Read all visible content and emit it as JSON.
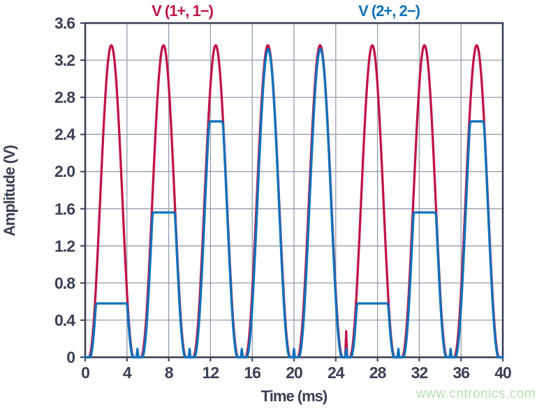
{
  "watermark": "www.cntronics.com",
  "colors": {
    "series1_red": "#c11346",
    "series2_blue": "#0f72bb",
    "axis_dark": "#3a4056",
    "grid": "#949cae",
    "watermark_green": "#b6e0ae",
    "background": "#ffffff"
  },
  "chart_data": {
    "type": "line",
    "title": "",
    "xlabel": "Time (ms)",
    "ylabel": "Amplitude (V)",
    "xlim": [
      0,
      40
    ],
    "ylim": [
      0,
      3.6
    ],
    "grid": true,
    "grid_x_step_ms": 4,
    "grid_y_step_v": 0.4,
    "xticks": [
      "0",
      "4",
      "8",
      "12",
      "16",
      "20",
      "24",
      "28",
      "32",
      "36",
      "40"
    ],
    "yticks": [
      "3.6",
      "3.2",
      "2.8",
      "2.4",
      "2.0",
      "1.6",
      "1.2",
      "0.8",
      "0.4",
      "0"
    ],
    "legend_position": "top",
    "series": [
      {
        "name": "V (1+, 1−)",
        "color": "#c11346",
        "description": "Full-wave rectified sin^2-shaped pulse train, unclipped",
        "pulse_centers_ms": [
          2.5,
          7.5,
          12.5,
          17.5,
          22.5,
          27.5,
          32.5,
          37.5
        ],
        "peak_values_v": [
          3.36,
          3.36,
          3.36,
          3.36,
          3.36,
          3.36,
          3.36,
          3.36
        ],
        "model": {
          "shape": "sin2",
          "period_ms": 5,
          "pulse_start_ms": 0.35,
          "pulse_width_ms": 4.3,
          "peak_v": 3.36,
          "count": 8
        },
        "spike_times_ms": [
          25
        ],
        "spike_height_v": 0.28,
        "spike_half_width_ms": 0.09
      },
      {
        "name": "V (2+, 2−)",
        "color": "#0f72bb",
        "description": "Same pulse train soft-clipped at cycling plateau levels",
        "pulse_centers_ms": [
          2.5,
          7.5,
          12.5,
          17.5,
          22.5,
          27.5,
          32.5,
          37.5
        ],
        "peak_values_v": [
          0.58,
          1.56,
          2.54,
          3.32,
          3.32,
          0.58,
          1.56,
          2.54
        ],
        "model": {
          "shape": "sin2",
          "period_ms": 5,
          "pulse_start_ms": 0.45,
          "pulse_width_ms": 4.15,
          "peak_v": 3.32,
          "count": 8,
          "clip_levels_v": [
            0.58,
            1.56,
            2.54,
            null,
            null
          ],
          "clip_softness_v": 0.05
        },
        "spike_times_ms": [
          5,
          10,
          15,
          20,
          25,
          30,
          35
        ],
        "spike_height_v": 0.09,
        "spike_half_width_ms": 0.09
      }
    ]
  }
}
